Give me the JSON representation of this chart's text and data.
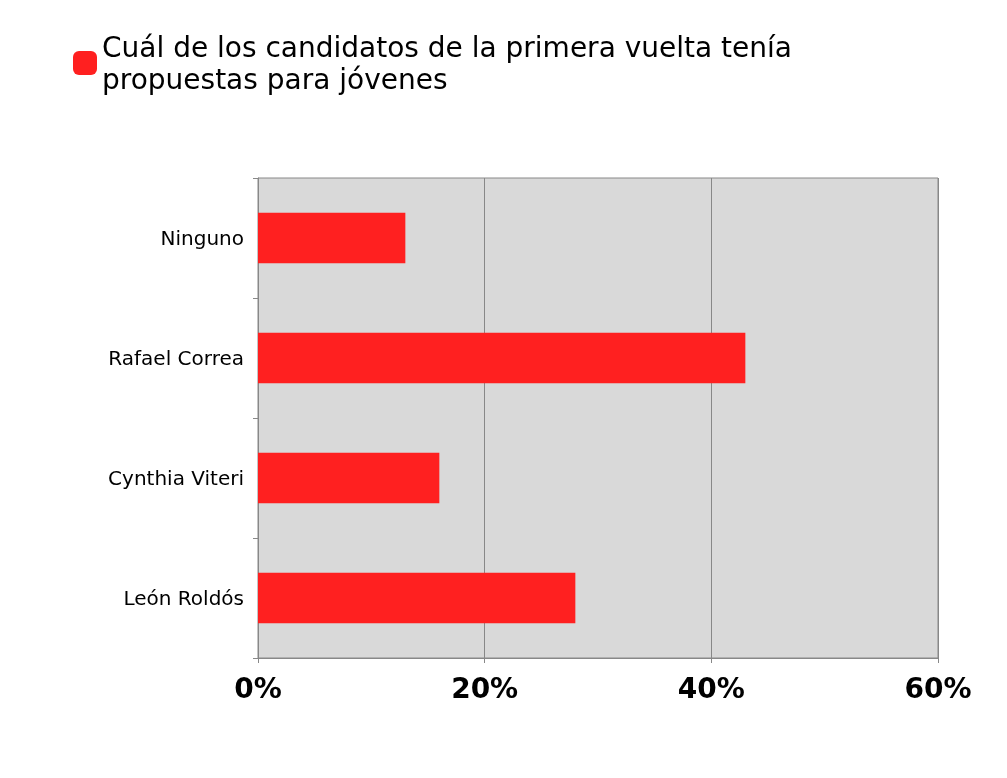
{
  "chart_data": {
    "type": "bar",
    "orientation": "horizontal",
    "categories": [
      "Ninguno",
      "Rafael Correa",
      "Cynthia Viteri",
      "León Roldós"
    ],
    "series": [
      {
        "name": "Cuál de los candidatos de la primera vuelta tenía propuestas para jóvenes",
        "color": "#ff2020",
        "values": [
          13,
          43,
          16,
          28
        ]
      }
    ],
    "xlim": [
      0,
      60
    ],
    "xticks": [
      {
        "value": 0,
        "label": "0%"
      },
      {
        "value": 20,
        "label": "20%"
      },
      {
        "value": 40,
        "label": "40%"
      },
      {
        "value": 60,
        "label": "60%"
      }
    ],
    "grid": "x",
    "legend": "top left"
  }
}
